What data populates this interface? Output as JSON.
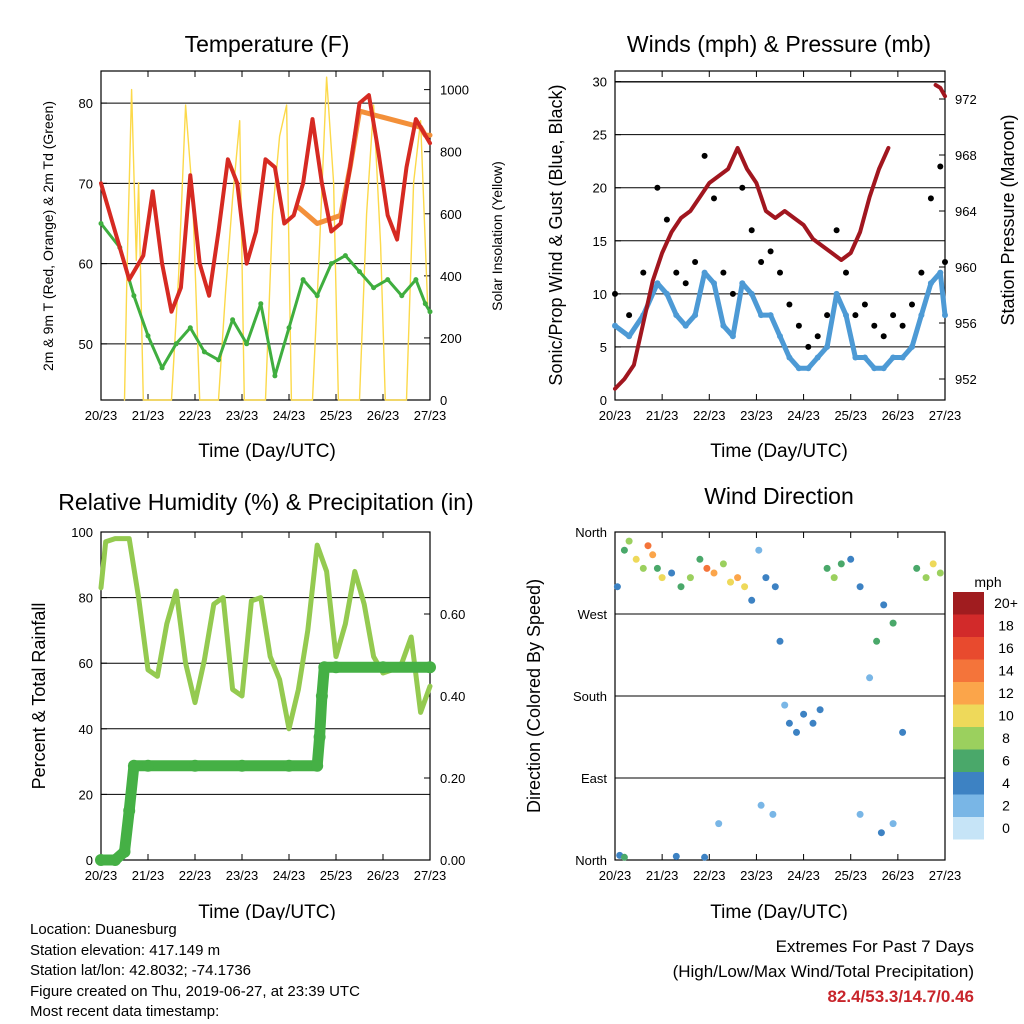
{
  "panels": {
    "temperature": {
      "title": "Temperature (F)",
      "ylabel_left": "2m & 9m T (Red, Orange) & 2m Td (Green)",
      "ylabel_right": "Solar Insolation (Yellow)",
      "xlabel": "Time (Day/UTC)"
    },
    "winds": {
      "title": "Winds (mph) & Pressure (mb)",
      "ylabel_left": "Sonic/Prop Wind & Gust (Blue, Black)",
      "ylabel_right": "Station Pressure (Maroon)",
      "xlabel": "Time (Day/UTC)"
    },
    "humidity": {
      "title": "Relative Humidity (%) & Precipitation (in)",
      "ylabel_left": "Percent & Total Rainfall",
      "xlabel": "Time (Day/UTC)"
    },
    "direction": {
      "title": "Wind Direction",
      "ylabel_left": "Direction (Colored By Speed)",
      "xlabel": "Time (Day/UTC)",
      "legend_title": "mph"
    }
  },
  "colors": {
    "temp2m": "#d62a22",
    "temp9m": "#f3903a",
    "dewpoint": "#3fae3f",
    "solar": "#fcd94a",
    "wind": "#4d9ad5",
    "gust": "#000000",
    "pressure": "#a1161f",
    "rh": "#94ca50",
    "rain": "#45b045"
  },
  "chart_data": [
    {
      "type": "line",
      "title": "Temperature (F)",
      "xlabel": "Time (Day/UTC)",
      "ylabel": "2m & 9m T (Red, Orange) & 2m Td (Green)",
      "y2label": "Solar Insolation (Yellow)",
      "xlim": [
        0,
        7
      ],
      "ylim": [
        43,
        84
      ],
      "y2lim": [
        0,
        1060
      ],
      "x_ticks": [
        "20/23",
        "21/23",
        "22/23",
        "23/23",
        "24/23",
        "25/23",
        "26/23",
        "27/23"
      ],
      "y_ticks": [
        50,
        60,
        70,
        80
      ],
      "y2_ticks": [
        0,
        200,
        400,
        600,
        800,
        1000
      ],
      "grid": "horizontal",
      "series": [
        {
          "name": "2m T",
          "axis": "left",
          "x": [
            0,
            0.3,
            0.6,
            0.9,
            1.1,
            1.3,
            1.5,
            1.7,
            1.9,
            2.1,
            2.3,
            2.5,
            2.7,
            2.9,
            3.1,
            3.3,
            3.5,
            3.7,
            3.9,
            4.1,
            4.3,
            4.5,
            4.7,
            4.9,
            5.1,
            5.3,
            5.5,
            5.7,
            5.9,
            6.1,
            6.3,
            6.5,
            6.7,
            6.9,
            7.0
          ],
          "y": [
            70,
            64,
            58,
            61,
            69,
            60,
            54,
            57,
            71,
            60,
            56,
            64,
            73,
            70,
            60,
            64,
            73,
            72,
            65,
            66,
            70,
            78,
            70,
            64,
            65,
            72,
            80,
            81,
            74,
            66,
            63,
            72,
            78,
            76,
            75
          ]
        },
        {
          "name": "9m T",
          "axis": "left",
          "x": [
            4.2,
            4.4,
            4.6,
            5.1,
            5.3,
            5.5,
            6.8,
            6.9,
            7.0
          ],
          "y": [
            67,
            66,
            65,
            66,
            72,
            79,
            77,
            76,
            76
          ]
        },
        {
          "name": "2m Td",
          "axis": "left",
          "x": [
            0,
            0.4,
            0.7,
            1.0,
            1.3,
            1.6,
            1.9,
            2.2,
            2.5,
            2.8,
            3.1,
            3.4,
            3.7,
            4.0,
            4.3,
            4.6,
            4.9,
            5.2,
            5.5,
            5.8,
            6.1,
            6.4,
            6.7,
            6.9,
            7.0
          ],
          "y": [
            65,
            62,
            56,
            51,
            47,
            50,
            52,
            49,
            48,
            53,
            50,
            55,
            46,
            52,
            58,
            56,
            60,
            61,
            59,
            57,
            58,
            56,
            58,
            55,
            54
          ]
        },
        {
          "name": "Solar",
          "axis": "right",
          "x": [
            0.5,
            0.55,
            0.65,
            0.75,
            0.8,
            0.9,
            1.5,
            1.65,
            1.8,
            1.95,
            2.1,
            2.5,
            2.65,
            2.8,
            2.95,
            3.05,
            3.5,
            3.65,
            3.8,
            3.95,
            4.05,
            4.5,
            4.65,
            4.8,
            4.95,
            5.05,
            5.5,
            5.65,
            5.8,
            5.95,
            6.05,
            6.5,
            6.65,
            6.8,
            6.95
          ],
          "y": [
            0,
            400,
            1000,
            450,
            700,
            0,
            0,
            400,
            950,
            650,
            0,
            0,
            350,
            650,
            900,
            0,
            0,
            600,
            850,
            950,
            0,
            0,
            500,
            1040,
            700,
            0,
            0,
            600,
            950,
            500,
            0,
            0,
            700,
            900,
            300
          ]
        }
      ]
    },
    {
      "type": "scatter",
      "title": "Winds (mph) & Pressure (mb)",
      "xlabel": "Time (Day/UTC)",
      "ylabel": "Sonic/Prop Wind & Gust (Blue, Black)",
      "y2label": "Station Pressure (Maroon)",
      "xlim": [
        0,
        7
      ],
      "ylim": [
        0,
        31
      ],
      "y2lim": [
        950.5,
        974
      ],
      "x_ticks": [
        "20/23",
        "21/23",
        "22/23",
        "23/23",
        "24/23",
        "25/23",
        "26/23",
        "27/23"
      ],
      "y_ticks": [
        0,
        5,
        10,
        15,
        20,
        25,
        30
      ],
      "y2_ticks": [
        952,
        956,
        960,
        964,
        968,
        972
      ],
      "grid": "horizontal",
      "series": [
        {
          "name": "Gust",
          "axis": "left",
          "x": [
            0,
            0.3,
            0.6,
            0.9,
            1.1,
            1.3,
            1.5,
            1.7,
            1.9,
            2.1,
            2.3,
            2.5,
            2.7,
            2.9,
            3.1,
            3.3,
            3.5,
            3.7,
            3.9,
            4.1,
            4.3,
            4.5,
            4.7,
            4.9,
            5.1,
            5.3,
            5.5,
            5.7,
            5.9,
            6.1,
            6.3,
            6.5,
            6.7,
            6.9,
            7.0
          ],
          "y": [
            10,
            8,
            12,
            20,
            17,
            12,
            11,
            13,
            23,
            19,
            12,
            10,
            20,
            16,
            13,
            14,
            12,
            9,
            7,
            5,
            6,
            8,
            16,
            12,
            8,
            9,
            7,
            6,
            8,
            7,
            9,
            12,
            19,
            22,
            13
          ]
        },
        {
          "name": "Wind",
          "axis": "left",
          "x": [
            0,
            0.3,
            0.6,
            0.9,
            1.1,
            1.3,
            1.5,
            1.7,
            1.9,
            2.1,
            2.3,
            2.5,
            2.7,
            2.9,
            3.1,
            3.3,
            3.5,
            3.7,
            3.9,
            4.1,
            4.3,
            4.5,
            4.7,
            4.9,
            5.1,
            5.3,
            5.5,
            5.7,
            5.9,
            6.1,
            6.3,
            6.5,
            6.7,
            6.9,
            7.0
          ],
          "y": [
            7,
            6,
            8,
            11,
            10,
            8,
            7,
            8,
            12,
            11,
            7,
            6,
            11,
            10,
            8,
            8,
            6,
            4,
            3,
            3,
            4,
            5,
            10,
            8,
            4,
            4,
            3,
            3,
            4,
            4,
            5,
            8,
            11,
            12,
            8
          ]
        },
        {
          "name": "Station Pressure",
          "axis": "right",
          "x": [
            0,
            0.2,
            0.4,
            0.6,
            0.8,
            1.0,
            1.2,
            1.4,
            1.6,
            1.8,
            2.0,
            2.2,
            2.4,
            2.6,
            2.8,
            3.0,
            3.2,
            3.4,
            3.6,
            3.8,
            4.0,
            4.2,
            4.4,
            4.6,
            4.8,
            5.0,
            5.2,
            5.4,
            5.6,
            5.8,
            6.0,
            6.2,
            6.4,
            6.6,
            6.8,
            6.9,
            7.0
          ],
          "y": [
            951.3,
            952,
            953,
            956,
            959,
            961,
            962.5,
            963.5,
            964,
            965,
            966,
            966.5,
            967,
            968.5,
            967,
            966,
            964,
            963.5,
            964,
            963.5,
            963,
            962,
            961.5,
            961,
            960.5,
            961,
            962.5,
            965,
            967,
            968.5,
            null,
            null,
            null,
            null,
            973,
            972.8,
            972.2
          ]
        }
      ]
    },
    {
      "type": "scatter",
      "title": "Relative Humidity (%) & Precipitation (in)",
      "xlabel": "Time (Day/UTC)",
      "ylabel": "Percent & Total Rainfall",
      "xlim": [
        0,
        7
      ],
      "ylim": [
        0,
        100
      ],
      "y2lim": [
        0,
        0.8
      ],
      "x_ticks": [
        "20/23",
        "21/23",
        "22/23",
        "23/23",
        "24/23",
        "25/23",
        "26/23",
        "27/23"
      ],
      "y_ticks": [
        0,
        20,
        40,
        60,
        80,
        100
      ],
      "y2_ticks": [
        0.0,
        0.2,
        0.4,
        0.6
      ],
      "grid": "horizontal",
      "series": [
        {
          "name": "RH",
          "axis": "left",
          "x": [
            0,
            0.1,
            0.3,
            0.6,
            0.8,
            1.0,
            1.2,
            1.4,
            1.6,
            1.8,
            2.0,
            2.2,
            2.4,
            2.6,
            2.8,
            3.0,
            3.2,
            3.4,
            3.6,
            3.8,
            4.0,
            4.2,
            4.4,
            4.6,
            4.8,
            5.0,
            5.2,
            5.4,
            5.6,
            5.8,
            6.0,
            6.2,
            6.4,
            6.6,
            6.8,
            7.0
          ],
          "y": [
            83,
            97,
            98,
            98,
            80,
            58,
            56,
            72,
            82,
            60,
            48,
            61,
            78,
            80,
            52,
            50,
            79,
            80,
            62,
            55,
            40,
            52,
            70,
            96,
            88,
            62,
            72,
            88,
            78,
            62,
            57,
            58,
            60,
            68,
            45,
            53
          ]
        },
        {
          "name": "Total Rainfall",
          "axis": "right",
          "x": [
            0,
            0.3,
            0.5,
            0.6,
            0.7,
            1.0,
            2.0,
            3.0,
            4.0,
            4.6,
            4.65,
            4.7,
            4.75,
            5.0,
            6.0,
            7.0
          ],
          "y": [
            0,
            0,
            0.02,
            0.12,
            0.23,
            0.23,
            0.23,
            0.23,
            0.23,
            0.23,
            0.3,
            0.4,
            0.47,
            0.47,
            0.47,
            0.47
          ]
        }
      ]
    },
    {
      "type": "scatter",
      "title": "Wind Direction",
      "xlabel": "Time (Day/UTC)",
      "ylabel": "Direction (Colored By Speed)",
      "xlim": [
        0,
        7
      ],
      "ylim": [
        0,
        360
      ],
      "x_ticks": [
        "20/23",
        "21/23",
        "22/23",
        "23/23",
        "24/23",
        "25/23",
        "26/23",
        "27/23"
      ],
      "y_ticks": [
        "North",
        "East",
        "South",
        "West",
        "North"
      ],
      "grid": "horizontal",
      "legend": {
        "title": "mph",
        "position": "right",
        "labels": [
          "20+",
          "18",
          "16",
          "14",
          "12",
          "10",
          "8",
          "6",
          "4",
          "2",
          "0"
        ],
        "colors": [
          "#a01c1f",
          "#d22a2a",
          "#e84a2e",
          "#f4743a",
          "#fba54a",
          "#eed95a",
          "#9bd05e",
          "#4aa86a",
          "#3d82c3",
          "#79b6e6",
          "#c6e4f7"
        ]
      },
      "points": [
        {
          "x": 0.05,
          "dir": 300,
          "speed": 4
        },
        {
          "x": 0.2,
          "dir": 340,
          "speed": 6
        },
        {
          "x": 0.3,
          "dir": 350,
          "speed": 8
        },
        {
          "x": 0.45,
          "dir": 330,
          "speed": 10
        },
        {
          "x": 0.6,
          "dir": 320,
          "speed": 8
        },
        {
          "x": 0.7,
          "dir": 345,
          "speed": 13
        },
        {
          "x": 0.8,
          "dir": 335,
          "speed": 12
        },
        {
          "x": 0.9,
          "dir": 320,
          "speed": 6
        },
        {
          "x": 1.0,
          "dir": 310,
          "speed": 10
        },
        {
          "x": 1.2,
          "dir": 315,
          "speed": 4
        },
        {
          "x": 1.4,
          "dir": 300,
          "speed": 6
        },
        {
          "x": 1.6,
          "dir": 310,
          "speed": 8
        },
        {
          "x": 1.8,
          "dir": 330,
          "speed": 6
        },
        {
          "x": 1.95,
          "dir": 320,
          "speed": 13
        },
        {
          "x": 2.1,
          "dir": 315,
          "speed": 12
        },
        {
          "x": 2.3,
          "dir": 325,
          "speed": 8
        },
        {
          "x": 2.45,
          "dir": 305,
          "speed": 10
        },
        {
          "x": 2.6,
          "dir": 310,
          "speed": 11
        },
        {
          "x": 2.75,
          "dir": 300,
          "speed": 9
        },
        {
          "x": 2.9,
          "dir": 285,
          "speed": 4
        },
        {
          "x": 3.05,
          "dir": 340,
          "speed": 2
        },
        {
          "x": 3.2,
          "dir": 310,
          "speed": 4
        },
        {
          "x": 3.4,
          "dir": 300,
          "speed": 4
        },
        {
          "x": 3.5,
          "dir": 240,
          "speed": 4
        },
        {
          "x": 3.6,
          "dir": 170,
          "speed": 2
        },
        {
          "x": 3.7,
          "dir": 150,
          "speed": 3
        },
        {
          "x": 3.85,
          "dir": 140,
          "speed": 4
        },
        {
          "x": 4.0,
          "dir": 160,
          "speed": 3
        },
        {
          "x": 4.2,
          "dir": 150,
          "speed": 4
        },
        {
          "x": 4.35,
          "dir": 165,
          "speed": 3
        },
        {
          "x": 4.5,
          "dir": 320,
          "speed": 6
        },
        {
          "x": 4.65,
          "dir": 310,
          "speed": 8
        },
        {
          "x": 4.8,
          "dir": 325,
          "speed": 6
        },
        {
          "x": 5.0,
          "dir": 330,
          "speed": 3
        },
        {
          "x": 5.2,
          "dir": 300,
          "speed": 4
        },
        {
          "x": 5.4,
          "dir": 200,
          "speed": 2
        },
        {
          "x": 5.55,
          "dir": 240,
          "speed": 6
        },
        {
          "x": 5.7,
          "dir": 280,
          "speed": 4
        },
        {
          "x": 5.9,
          "dir": 260,
          "speed": 6
        },
        {
          "x": 6.1,
          "dir": 140,
          "speed": 3
        },
        {
          "x": 6.4,
          "dir": 320,
          "speed": 6
        },
        {
          "x": 6.6,
          "dir": 310,
          "speed": 8
        },
        {
          "x": 6.75,
          "dir": 325,
          "speed": 9
        },
        {
          "x": 6.9,
          "dir": 315,
          "speed": 8
        },
        {
          "x": 0.1,
          "dir": 5,
          "speed": 4
        },
        {
          "x": 0.2,
          "dir": 3,
          "speed": 6
        },
        {
          "x": 1.3,
          "dir": 4,
          "speed": 3
        },
        {
          "x": 1.9,
          "dir": 3,
          "speed": 4
        },
        {
          "x": 2.2,
          "dir": 40,
          "speed": 2
        },
        {
          "x": 3.1,
          "dir": 60,
          "speed": 2
        },
        {
          "x": 3.35,
          "dir": 50,
          "speed": 2
        },
        {
          "x": 5.2,
          "dir": 50,
          "speed": 2
        },
        {
          "x": 5.65,
          "dir": 30,
          "speed": 4
        },
        {
          "x": 5.9,
          "dir": 40,
          "speed": 2
        }
      ]
    }
  ],
  "footer": {
    "location": "Location: Duanesburg",
    "elevation": "Station elevation: 417.149 m",
    "latlon": "Station lat/lon: 42.8032; -74.1736",
    "created": "Figure created on Thu, 2019-06-27, at 23:39 UTC",
    "recent": "Most recent data timestamp:"
  },
  "extremes": {
    "heading": "Extremes For Past 7 Days",
    "subheading": "(High/Low/Max Wind/Total Precipitation)",
    "values": "82.4/53.3/14.7/0.46"
  }
}
